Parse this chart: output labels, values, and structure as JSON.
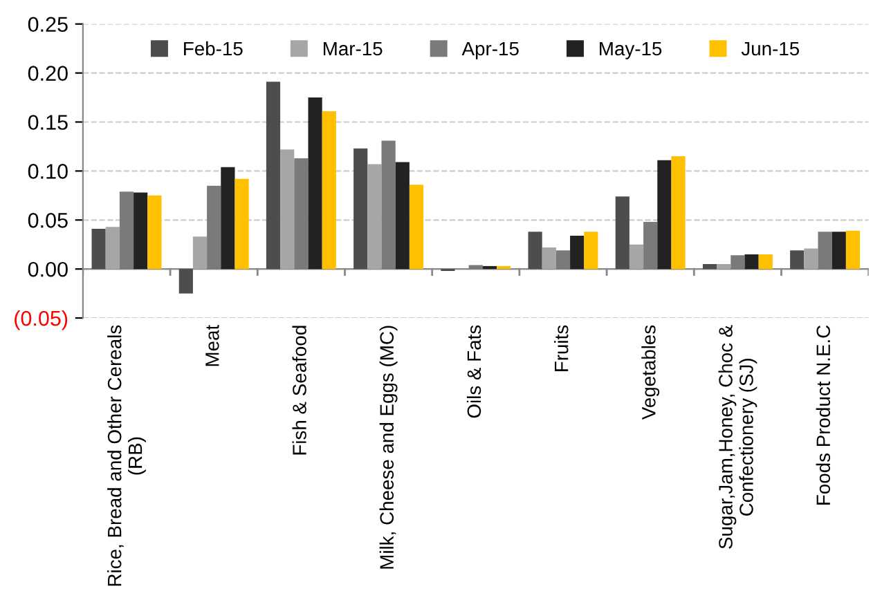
{
  "chart_data": {
    "type": "bar",
    "categories": [
      "Rice, Bread and Other Cereals\n(RB)",
      "Meat",
      "Fish & Seafood",
      "Milk, Cheese and Eggs (MC)",
      "Oils & Fats",
      "Fruits",
      "Vegetables",
      "Sugar,Jam,Honey, Choc &\nConfectionery (SJ)",
      "Foods Product N.E.C"
    ],
    "series": [
      {
        "name": "Feb-15",
        "color": "#4d4d4d",
        "values": [
          0.041,
          -0.025,
          0.191,
          0.123,
          -0.002,
          0.038,
          0.074,
          0.005,
          0.019
        ]
      },
      {
        "name": "Mar-15",
        "color": "#a6a6a6",
        "values": [
          0.043,
          0.033,
          0.122,
          0.107,
          null,
          0.022,
          0.025,
          0.005,
          0.021
        ]
      },
      {
        "name": "Apr-15",
        "color": "#7a7a7a",
        "values": [
          0.079,
          0.085,
          0.113,
          0.131,
          0.004,
          0.019,
          0.048,
          0.014,
          0.038
        ]
      },
      {
        "name": "May-15",
        "color": "#222222",
        "values": [
          0.078,
          0.104,
          0.175,
          0.109,
          0.003,
          0.034,
          0.111,
          0.015,
          0.038
        ]
      },
      {
        "name": "Jun-15",
        "color": "#ffc000",
        "values": [
          0.075,
          0.092,
          0.161,
          0.086,
          0.003,
          0.038,
          0.115,
          0.015,
          0.039
        ]
      }
    ],
    "ylim": [
      -0.05,
      0.25
    ],
    "yticks": [
      {
        "value": -0.05,
        "label": "(0.05)"
      },
      {
        "value": 0.0,
        "label": "0.00"
      },
      {
        "value": 0.05,
        "label": "0.05"
      },
      {
        "value": 0.1,
        "label": "0.10"
      },
      {
        "value": 0.15,
        "label": "0.15"
      },
      {
        "value": 0.2,
        "label": "0.20"
      },
      {
        "value": 0.25,
        "label": "0.25"
      }
    ],
    "grid": "y",
    "legend": "top"
  }
}
